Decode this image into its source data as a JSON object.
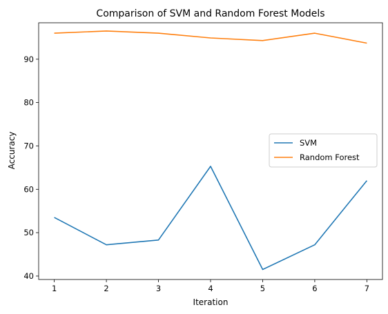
{
  "chart_data": {
    "type": "line",
    "title": "Comparison of SVM and Random Forest Models",
    "xlabel": "Iteration",
    "ylabel": "Accuracy",
    "x": [
      1,
      2,
      3,
      4,
      5,
      6,
      7
    ],
    "xlim": [
      0.7,
      7.3
    ],
    "ylim": [
      39.2,
      98.4
    ],
    "xticks": [
      1,
      2,
      3,
      4,
      5,
      6,
      7
    ],
    "yticks": [
      40,
      50,
      60,
      70,
      80,
      90
    ],
    "grid": false,
    "legend_position": "center-right",
    "series": [
      {
        "name": "SVM",
        "color": "#1f77b4",
        "values": [
          53.5,
          47.2,
          48.3,
          65.3,
          41.5,
          47.2,
          62.0
        ]
      },
      {
        "name": "Random Forest",
        "color": "#ff7f0e",
        "values": [
          96.0,
          96.5,
          96.0,
          94.9,
          94.3,
          96.0,
          93.7
        ]
      }
    ]
  }
}
